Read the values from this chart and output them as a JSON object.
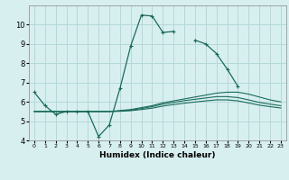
{
  "xlabel": "Humidex (Indice chaleur)",
  "x_values": [
    0,
    1,
    2,
    3,
    4,
    5,
    6,
    7,
    8,
    9,
    10,
    11,
    12,
    13,
    14,
    15,
    16,
    17,
    18,
    19,
    20,
    21,
    22,
    23
  ],
  "line1_y": [
    6.5,
    5.8,
    5.35,
    5.5,
    5.5,
    5.5,
    4.2,
    4.8,
    6.7,
    8.9,
    10.5,
    10.45,
    9.6,
    9.65,
    null,
    9.2,
    9.0,
    8.5,
    7.7,
    6.8,
    null,
    null,
    null,
    null
  ],
  "smooth1_y": [
    5.5,
    5.5,
    5.5,
    5.5,
    5.5,
    5.5,
    5.5,
    5.5,
    5.55,
    5.6,
    5.7,
    5.8,
    5.95,
    6.05,
    6.15,
    6.25,
    6.35,
    6.45,
    6.5,
    6.5,
    6.4,
    6.25,
    6.1,
    6.0
  ],
  "smooth2_y": [
    5.5,
    5.5,
    5.5,
    5.5,
    5.5,
    5.5,
    5.5,
    5.5,
    5.52,
    5.57,
    5.65,
    5.75,
    5.88,
    5.97,
    6.06,
    6.13,
    6.2,
    6.27,
    6.27,
    6.22,
    6.1,
    5.97,
    5.88,
    5.8
  ],
  "smooth3_y": [
    5.5,
    5.5,
    5.5,
    5.5,
    5.5,
    5.5,
    5.5,
    5.5,
    5.51,
    5.54,
    5.6,
    5.67,
    5.78,
    5.86,
    5.93,
    5.99,
    6.05,
    6.1,
    6.1,
    6.05,
    5.94,
    5.83,
    5.75,
    5.68
  ],
  "line_color": "#1a6b5a",
  "bg_color": "#d8eff0",
  "grid_color": "#b5d8d8",
  "ylim": [
    4,
    11
  ],
  "yticks": [
    4,
    5,
    6,
    7,
    8,
    9,
    10
  ],
  "xlim": [
    -0.5,
    23.5
  ]
}
